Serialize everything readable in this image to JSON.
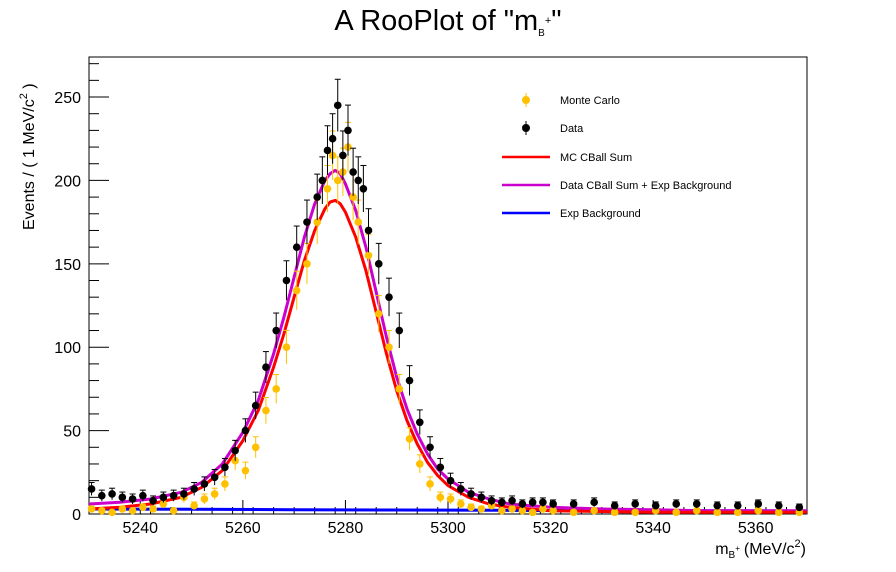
{
  "chart_data": {
    "type": "scatter",
    "title": {
      "main": "A RooPlot of \"m",
      "sub": "B",
      "sup": "+",
      "close": "\""
    },
    "xlabel": {
      "main": "m",
      "sub": "B",
      "sup": "+",
      "unit": "(MeV/c",
      "unit_sup": "2",
      "close": ")"
    },
    "ylabel": {
      "main": "Events / ( 1 MeV/c",
      "sup": "2",
      "close": " )"
    },
    "xlim": [
      5230,
      5370
    ],
    "ylim": [
      0,
      274
    ],
    "x_ticks": [
      5240,
      5260,
      5280,
      5300,
      5320,
      5340,
      5360
    ],
    "y_ticks": [
      0,
      50,
      100,
      150,
      200,
      250
    ],
    "legend_position": "top-right",
    "colors": {
      "mc": "#ffc000",
      "data": "#000000",
      "mc_fit": "#ff0000",
      "data_fit": "#cc00cc",
      "background": "#0000ff"
    },
    "series": [
      {
        "name": "Monte Carlo",
        "kind": "points",
        "color": "#ffc000",
        "x": [
          5230.5,
          5232.5,
          5234.5,
          5236.5,
          5238.5,
          5240.5,
          5242.5,
          5244.5,
          5246.5,
          5248.5,
          5250.5,
          5252.5,
          5254.5,
          5256.5,
          5258.5,
          5260.5,
          5262.5,
          5264.5,
          5266.5,
          5268.5,
          5270.5,
          5272.5,
          5274.5,
          5276.5,
          5277.5,
          5278.5,
          5279.5,
          5280.5,
          5281.5,
          5282.5,
          5284.5,
          5286.5,
          5288.5,
          5290.5,
          5292.5,
          5294.5,
          5296.5,
          5298.5,
          5300.5,
          5302.5,
          5304.5,
          5306.5,
          5308.5,
          5310.5,
          5312.5,
          5314.5,
          5316.5,
          5318.5,
          5320.5,
          5324.5,
          5328.5,
          5332.5,
          5336.5,
          5340.5,
          5344.5,
          5348.5,
          5352.5,
          5356.5,
          5360.5,
          5364.5,
          5368.5
        ],
        "y": [
          3,
          2,
          1,
          3,
          2,
          4,
          3,
          6,
          2,
          10,
          5,
          9,
          12,
          18,
          32,
          26,
          40,
          62,
          75,
          100,
          134,
          150,
          175,
          195,
          215,
          200,
          205,
          220,
          190,
          175,
          155,
          120,
          100,
          75,
          45,
          30,
          18,
          10,
          9,
          6,
          4,
          3,
          5,
          2,
          3,
          2,
          1,
          3,
          2,
          1,
          2,
          1,
          1,
          2,
          1,
          2,
          1,
          1,
          2,
          1,
          1
        ]
      },
      {
        "name": "Data",
        "kind": "points",
        "color": "#000000",
        "x": [
          5230.5,
          5232.5,
          5234.5,
          5236.5,
          5238.5,
          5240.5,
          5242.5,
          5244.5,
          5246.5,
          5248.5,
          5250.5,
          5252.5,
          5254.5,
          5256.5,
          5258.5,
          5260.5,
          5262.5,
          5264.5,
          5266.5,
          5268.5,
          5270.5,
          5272.5,
          5274.5,
          5275.5,
          5276.5,
          5277.5,
          5278.5,
          5279.5,
          5280.5,
          5281.5,
          5282.5,
          5283.5,
          5284.5,
          5286.5,
          5288.5,
          5290.5,
          5292.5,
          5294.5,
          5296.5,
          5298.5,
          5300.5,
          5302.5,
          5304.5,
          5306.5,
          5308.5,
          5310.5,
          5312.5,
          5314.5,
          5316.5,
          5318.5,
          5320.5,
          5324.5,
          5328.5,
          5332.5,
          5336.5,
          5340.5,
          5344.5,
          5348.5,
          5352.5,
          5356.5,
          5360.5,
          5364.5,
          5368.5
        ],
        "y": [
          15,
          11,
          12,
          10,
          9,
          11,
          8,
          10,
          11,
          12,
          15,
          18,
          22,
          28,
          38,
          50,
          65,
          88,
          110,
          140,
          160,
          175,
          190,
          200,
          218,
          225,
          245,
          215,
          230,
          205,
          200,
          195,
          170,
          150,
          130,
          110,
          80,
          55,
          40,
          28,
          20,
          15,
          12,
          10,
          8,
          7,
          8,
          6,
          7,
          7,
          6,
          6,
          7,
          5,
          6,
          5,
          6,
          6,
          5,
          5,
          6,
          5,
          4
        ]
      },
      {
        "name": "MC CBall Sum",
        "kind": "line",
        "color": "#ff0000",
        "x": [
          5230,
          5236,
          5242,
          5248,
          5252,
          5256,
          5260,
          5263,
          5266,
          5268,
          5270,
          5272,
          5274,
          5276,
          5277,
          5278,
          5279,
          5280,
          5282,
          5284,
          5286,
          5288,
          5290,
          5292,
          5294,
          5296,
          5298,
          5300,
          5304,
          5308,
          5312,
          5316,
          5320,
          5330,
          5340,
          5350,
          5360,
          5370
        ],
        "y": [
          3,
          4,
          6,
          10,
          16,
          26,
          44,
          62,
          88,
          108,
          130,
          152,
          170,
          183,
          187,
          188,
          186,
          181,
          166,
          146,
          121,
          96,
          74,
          56,
          42,
          31,
          23,
          17,
          10,
          6,
          4,
          3,
          2,
          1.5,
          1,
          1,
          1,
          1
        ]
      },
      {
        "name": "Data CBall Sum + Exp Background",
        "kind": "line",
        "color": "#cc00cc",
        "x": [
          5230,
          5236,
          5242,
          5248,
          5252,
          5256,
          5260,
          5263,
          5266,
          5268,
          5270,
          5272,
          5274,
          5276,
          5277,
          5278,
          5279,
          5280,
          5282,
          5284,
          5286,
          5288,
          5290,
          5292,
          5294,
          5296,
          5298,
          5300,
          5304,
          5308,
          5312,
          5316,
          5320,
          5330,
          5340,
          5350,
          5360,
          5370
        ],
        "y": [
          6,
          7,
          9,
          13,
          19,
          30,
          49,
          68,
          96,
          118,
          142,
          166,
          186,
          200,
          204,
          206,
          204,
          198,
          182,
          160,
          133,
          106,
          82,
          63,
          48,
          36,
          27,
          21,
          13,
          9,
          6,
          5,
          4,
          3,
          2.5,
          2,
          2,
          2
        ]
      },
      {
        "name": "Exp Background",
        "kind": "line",
        "color": "#0000ff",
        "x": [
          5230,
          5250,
          5270,
          5290,
          5310,
          5330,
          5350,
          5370
        ],
        "y": [
          3.0,
          2.8,
          2.6,
          2.4,
          2.2,
          2.0,
          1.9,
          1.8
        ]
      }
    ]
  }
}
